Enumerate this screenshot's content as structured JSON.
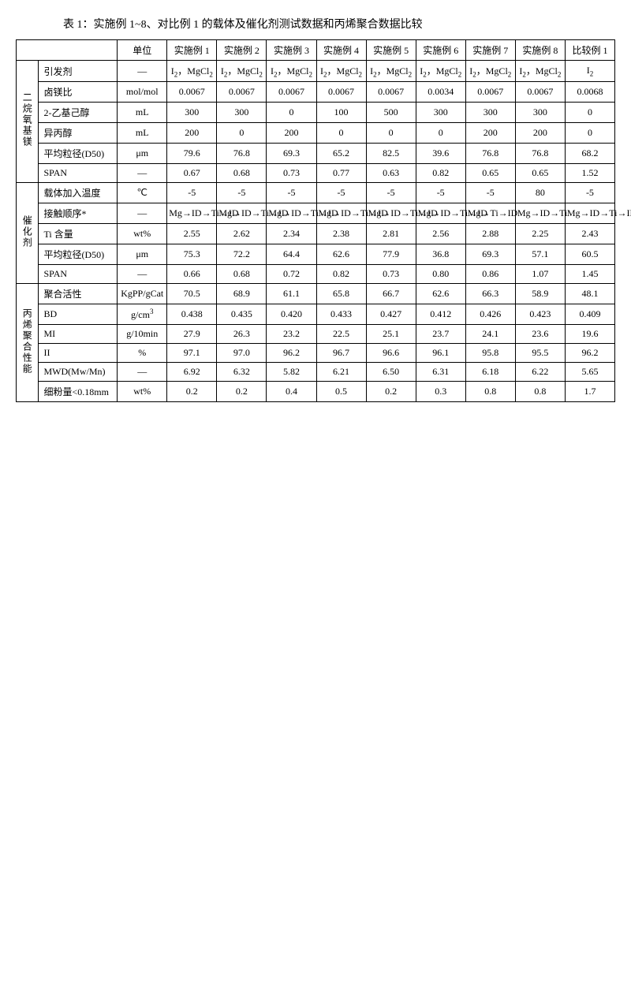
{
  "caption": "表 1：实施例 1~8、对比例 1 的载体及催化剂测试数据和丙烯聚合数据比较",
  "headers": {
    "blank": "",
    "unit": "单位",
    "ex1": "实施例 1",
    "ex2": "实施例 2",
    "ex3": "实施例 3",
    "ex4": "实施例 4",
    "ex5": "实施例 5",
    "ex6": "实施例 6",
    "ex7": "实施例 7",
    "ex8": "实施例 8",
    "cmp1": "比较例 1"
  },
  "groups": {
    "g1": "二烷氧基镁",
    "g2": "催化剂",
    "g3": "丙烯聚合性能"
  },
  "rows": {
    "r1": {
      "param": "引发剂",
      "unit": "—",
      "ex1": "I₂，MgCl₂",
      "ex2": "I₂，MgCl₂",
      "ex3": "I₂，MgCl₂",
      "ex4": "I₂，MgCl₂",
      "ex5": "I₂，MgCl₂",
      "ex6": "I₂，MgCl₂",
      "ex7": "I₂，MgCl₂",
      "ex8": "I₂，MgCl₂",
      "cmp1": "I₂"
    },
    "r2": {
      "param": "卤镁比",
      "unit": "mol/mol",
      "ex1": "0.0067",
      "ex2": "0.0067",
      "ex3": "0.0067",
      "ex4": "0.0067",
      "ex5": "0.0067",
      "ex6": "0.0034",
      "ex7": "0.0067",
      "ex8": "0.0067",
      "cmp1": "0.0068"
    },
    "r3": {
      "param": "2-乙基己醇",
      "unit": "mL",
      "ex1": "300",
      "ex2": "300",
      "ex3": "0",
      "ex4": "100",
      "ex5": "500",
      "ex6": "300",
      "ex7": "300",
      "ex8": "300",
      "cmp1": "0"
    },
    "r4": {
      "param": "异丙醇",
      "unit": "mL",
      "ex1": "200",
      "ex2": "0",
      "ex3": "200",
      "ex4": "0",
      "ex5": "0",
      "ex6": "0",
      "ex7": "200",
      "ex8": "200",
      "cmp1": "0"
    },
    "r5": {
      "param": "平均粒径(D50)",
      "unit": "μm",
      "ex1": "79.6",
      "ex2": "76.8",
      "ex3": "69.3",
      "ex4": "65.2",
      "ex5": "82.5",
      "ex6": "39.6",
      "ex7": "76.8",
      "ex8": "76.8",
      "cmp1": "68.2"
    },
    "r6": {
      "param": "SPAN",
      "unit": "—",
      "ex1": "0.67",
      "ex2": "0.68",
      "ex3": "0.73",
      "ex4": "0.77",
      "ex5": "0.63",
      "ex6": "0.82",
      "ex7": "0.65",
      "ex8": "0.65",
      "cmp1": "1.52"
    },
    "r7": {
      "param": "载体加入温度",
      "unit": "℃",
      "ex1": "-5",
      "ex2": "-5",
      "ex3": "-5",
      "ex4": "-5",
      "ex5": "-5",
      "ex6": "-5",
      "ex7": "-5",
      "ex8": "80",
      "cmp1": "-5"
    },
    "r8": {
      "param": "接触顺序*",
      "unit": "—",
      "ex1": "Mg→ID→Ti→ID",
      "ex2": "Mg→ID→Ti→ID",
      "ex3": "Mg→ID→Ti→ID",
      "ex4": "Mg→ID→Ti→ID",
      "ex5": "Mg→ID→Ti→ID",
      "ex6": "Mg→ID→Ti→ID",
      "ex7": "Mg→Ti→ID",
      "ex8": "Mg→ID→Ti",
      "cmp1": "Mg→ID→Ti→ID"
    },
    "r9": {
      "param": "Ti 含量",
      "unit": "wt%",
      "ex1": "2.55",
      "ex2": "2.62",
      "ex3": "2.34",
      "ex4": "2.38",
      "ex5": "2.81",
      "ex6": "2.56",
      "ex7": "2.88",
      "ex8": "2.25",
      "cmp1": "2.43"
    },
    "r10": {
      "param": "平均粒径(D50)",
      "unit": "μm",
      "ex1": "75.3",
      "ex2": "72.2",
      "ex3": "64.4",
      "ex4": "62.6",
      "ex5": "77.9",
      "ex6": "36.8",
      "ex7": "69.3",
      "ex8": "57.1",
      "cmp1": "60.5"
    },
    "r11": {
      "param": "SPAN",
      "unit": "—",
      "ex1": "0.66",
      "ex2": "0.68",
      "ex3": "0.72",
      "ex4": "0.82",
      "ex5": "0.73",
      "ex6": "0.80",
      "ex7": "0.86",
      "ex8": "1.07",
      "cmp1": "1.45"
    },
    "r12": {
      "param": "聚合活性",
      "unit": "KgPP/gCat",
      "ex1": "70.5",
      "ex2": "68.9",
      "ex3": "61.1",
      "ex4": "65.8",
      "ex5": "66.7",
      "ex6": "62.6",
      "ex7": "66.3",
      "ex8": "58.9",
      "cmp1": "48.1"
    },
    "r13": {
      "param": "BD",
      "unit": "g/cm³",
      "ex1": "0.438",
      "ex2": "0.435",
      "ex3": "0.420",
      "ex4": "0.433",
      "ex5": "0.427",
      "ex6": "0.412",
      "ex7": "0.426",
      "ex8": "0.423",
      "cmp1": "0.409"
    },
    "r14": {
      "param": "MI",
      "unit": "g/10min",
      "ex1": "27.9",
      "ex2": "26.3",
      "ex3": "23.2",
      "ex4": "22.5",
      "ex5": "25.1",
      "ex6": "23.7",
      "ex7": "24.1",
      "ex8": "23.6",
      "cmp1": "19.6"
    },
    "r15": {
      "param": "II",
      "unit": "%",
      "ex1": "97.1",
      "ex2": "97.0",
      "ex3": "96.2",
      "ex4": "96.7",
      "ex5": "96.6",
      "ex6": "96.1",
      "ex7": "95.8",
      "ex8": "95.5",
      "cmp1": "96.2"
    },
    "r16": {
      "param": "MWD(Mw/Mn)",
      "unit": "—",
      "ex1": "6.92",
      "ex2": "6.32",
      "ex3": "5.82",
      "ex4": "6.21",
      "ex5": "6.50",
      "ex6": "6.31",
      "ex7": "6.18",
      "ex8": "6.22",
      "cmp1": "5.65"
    },
    "r17": {
      "param": "细粉量<0.18mm",
      "unit": "wt%",
      "ex1": "0.2",
      "ex2": "0.2",
      "ex3": "0.4",
      "ex4": "0.5",
      "ex5": "0.2",
      "ex6": "0.3",
      "ex7": "0.8",
      "ex8": "0.8",
      "cmp1": "1.7"
    }
  }
}
